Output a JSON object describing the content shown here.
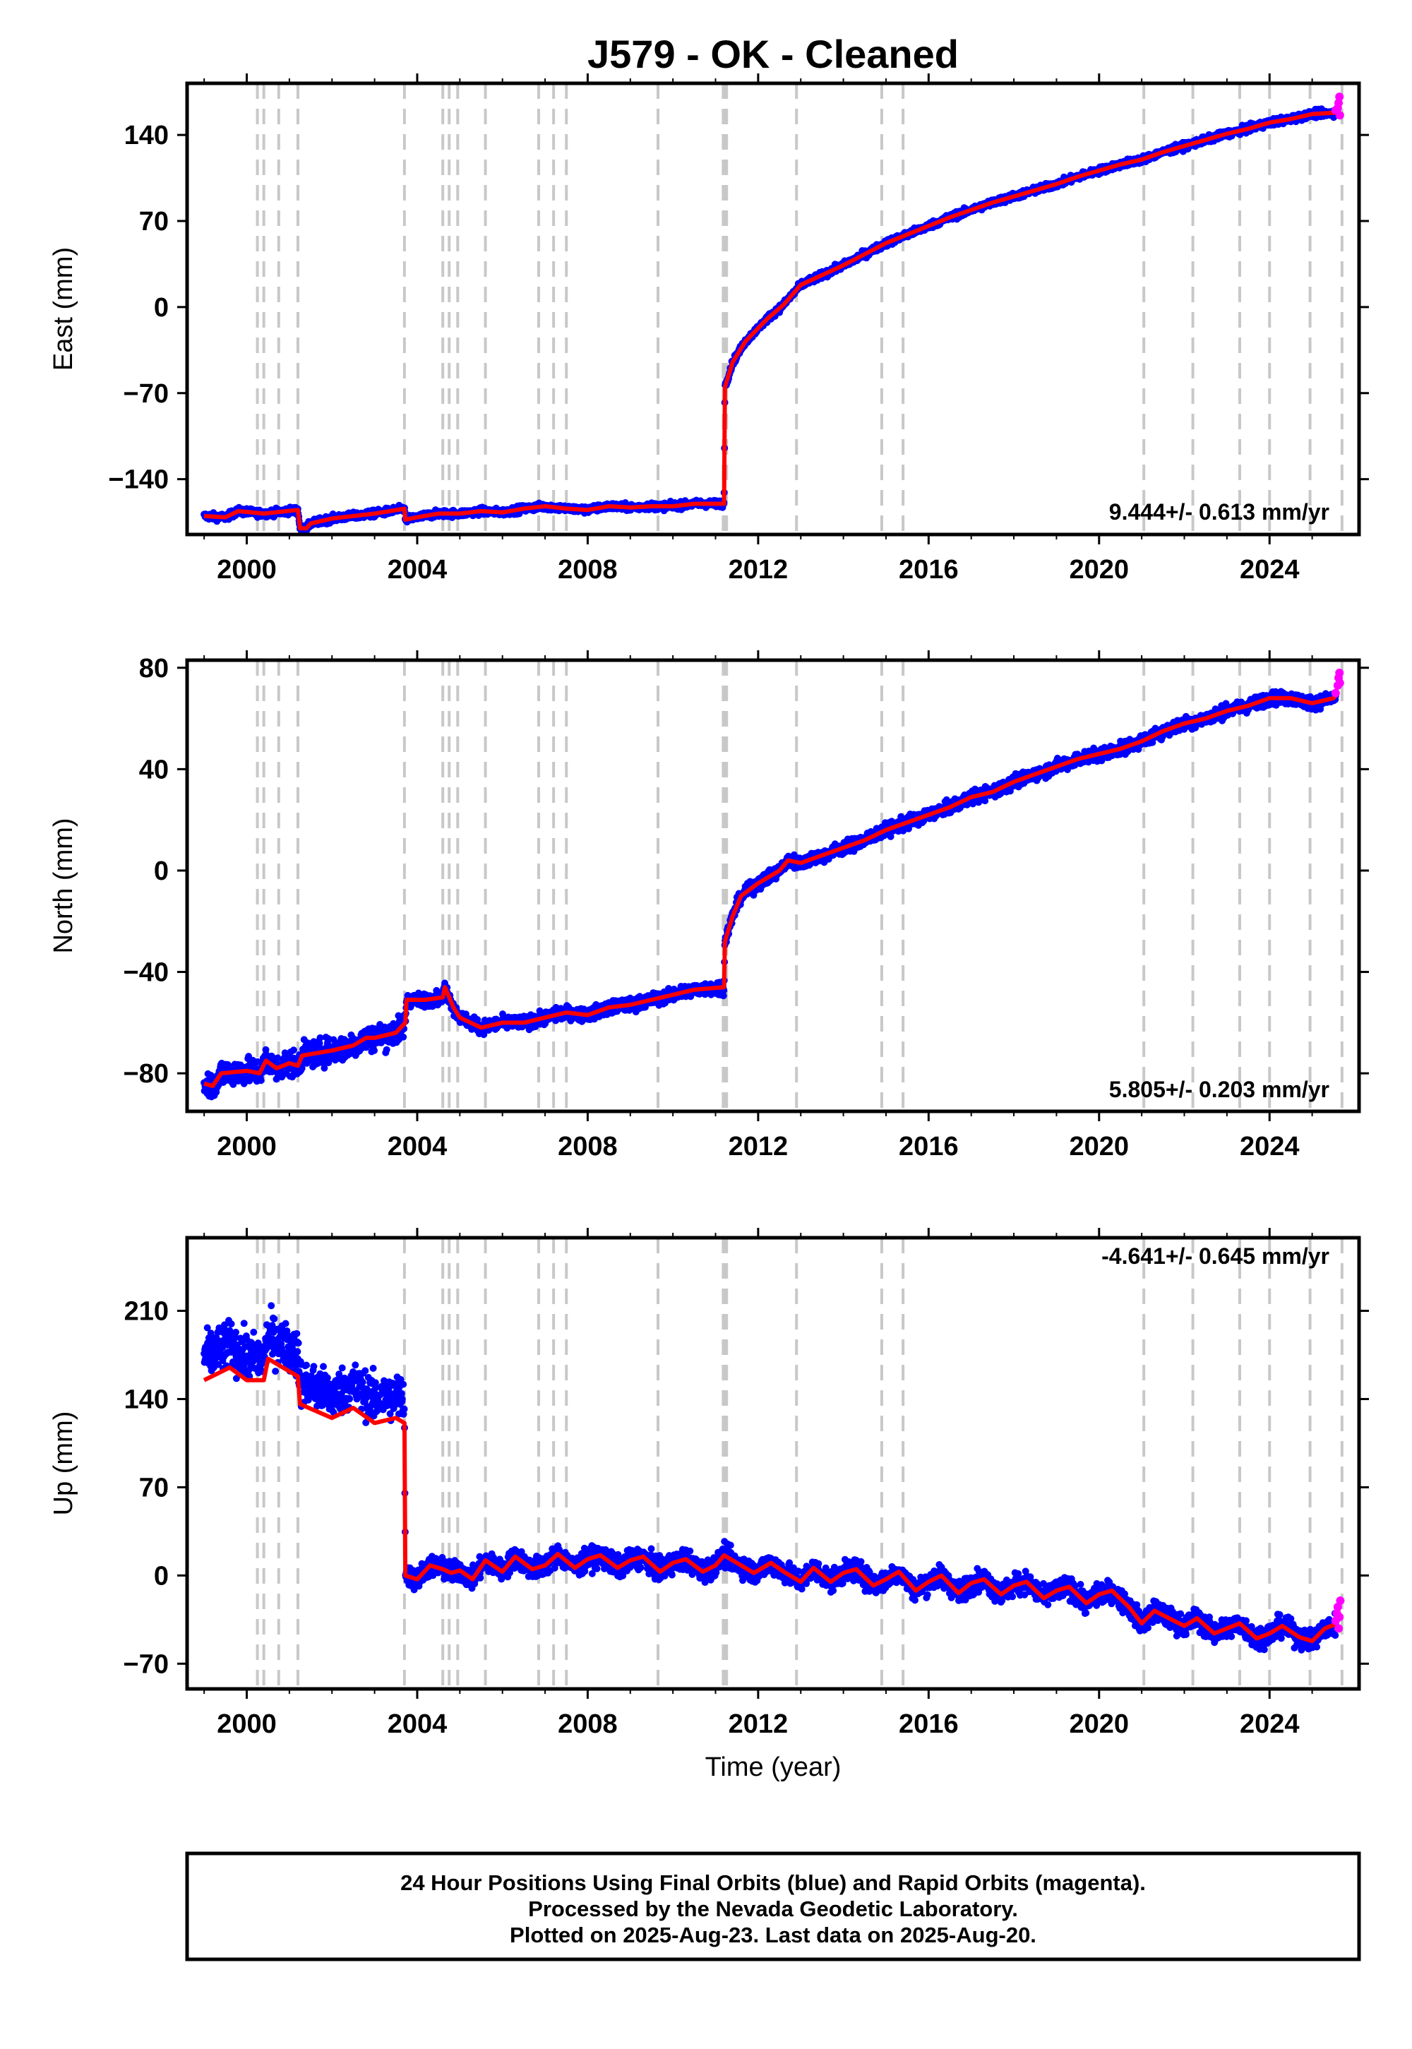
{
  "title": "J579  - OK - Cleaned",
  "x_axis_label": "Time (year)",
  "footer": {
    "line1": "24 Hour Positions Using Final Orbits (blue) and Rapid Orbits (magenta).",
    "line2": "Processed by the Nevada Geodetic Laboratory.",
    "line3": "Plotted on 2025-Aug-23. Last data on 2025-Aug-20."
  },
  "colors": {
    "final_orbits": "#0000ff",
    "rapid_orbits": "#ff00ff",
    "model": "#ff0000",
    "event_lines": "#c8c8c8"
  },
  "chart_data": [
    {
      "type": "scatter",
      "panel": "east",
      "ylabel": "East (mm)",
      "rate_text": "9.444+/- 0.613 mm/yr",
      "xlim": [
        1998.6,
        2026.1
      ],
      "ylim": [
        -185,
        182
      ],
      "xticks": [
        2000,
        2004,
        2008,
        2012,
        2016,
        2020,
        2024
      ],
      "yticks": [
        -140,
        -70,
        0,
        70,
        140
      ],
      "grid": false,
      "event_lines_x": [
        2000.25,
        2000.4,
        2000.75,
        2001.2,
        2003.7,
        2004.6,
        2004.75,
        2004.95,
        2005.6,
        2006.85,
        2007.2,
        2007.5,
        2009.65,
        2011.18,
        2011.22,
        2011.26,
        2012.9,
        2014.9,
        2015.4,
        2021.05,
        2022.2,
        2023.3,
        2024.0,
        2024.95,
        2025.7
      ],
      "model": [
        [
          1999.0,
          -170
        ],
        [
          1999.5,
          -171
        ],
        [
          1999.8,
          -166
        ],
        [
          2000.4,
          -168
        ],
        [
          2001.2,
          -165
        ],
        [
          2001.25,
          -180
        ],
        [
          2001.4,
          -180
        ],
        [
          2001.5,
          -176
        ],
        [
          2002.0,
          -172
        ],
        [
          2003.0,
          -168
        ],
        [
          2003.7,
          -164
        ],
        [
          2003.72,
          -173
        ],
        [
          2004.0,
          -171
        ],
        [
          2004.5,
          -168
        ],
        [
          2005.0,
          -168
        ],
        [
          2005.5,
          -166
        ],
        [
          2006.0,
          -167
        ],
        [
          2006.5,
          -164
        ],
        [
          2007.0,
          -162
        ],
        [
          2007.5,
          -164
        ],
        [
          2008.0,
          -165
        ],
        [
          2008.5,
          -162
        ],
        [
          2009.0,
          -163
        ],
        [
          2009.5,
          -162
        ],
        [
          2010.0,
          -162
        ],
        [
          2010.5,
          -160
        ],
        [
          2011.2,
          -160
        ],
        [
          2011.22,
          -65
        ],
        [
          2011.4,
          -45
        ],
        [
          2011.7,
          -28
        ],
        [
          2012.2,
          -10
        ],
        [
          2012.6,
          2
        ],
        [
          2012.8,
          10
        ],
        [
          2013.0,
          18
        ],
        [
          2013.5,
          26
        ],
        [
          2014.0,
          34
        ],
        [
          2014.5,
          43
        ],
        [
          2015.0,
          52
        ],
        [
          2015.5,
          59
        ],
        [
          2016.0,
          66
        ],
        [
          2016.5,
          73
        ],
        [
          2017.0,
          79
        ],
        [
          2017.5,
          85
        ],
        [
          2018.0,
          90
        ],
        [
          2018.5,
          95
        ],
        [
          2019.0,
          100
        ],
        [
          2019.5,
          106
        ],
        [
          2020.0,
          111
        ],
        [
          2020.5,
          116
        ],
        [
          2021.0,
          120
        ],
        [
          2021.5,
          126
        ],
        [
          2022.0,
          131
        ],
        [
          2022.5,
          136
        ],
        [
          2023.0,
          141
        ],
        [
          2023.5,
          145
        ],
        [
          2024.0,
          150
        ],
        [
          2024.5,
          153
        ],
        [
          2025.0,
          157
        ],
        [
          2025.5,
          158
        ],
        [
          2025.6,
          158
        ]
      ],
      "rapid": [
        [
          2025.55,
          160
        ],
        [
          2025.6,
          162
        ],
        [
          2025.62,
          166
        ],
        [
          2025.64,
          171
        ],
        [
          2025.65,
          156
        ]
      ]
    },
    {
      "type": "scatter",
      "panel": "north",
      "ylabel": "North (mm)",
      "rate_text": "5.805+/- 0.203 mm/yr",
      "xlim": [
        1998.6,
        2026.1
      ],
      "ylim": [
        -95,
        83
      ],
      "xticks": [
        2000,
        2004,
        2008,
        2012,
        2016,
        2020,
        2024
      ],
      "yticks": [
        -80,
        -40,
        0,
        40,
        80
      ],
      "grid": false,
      "event_lines_x": [
        2000.25,
        2000.4,
        2000.75,
        2001.2,
        2003.7,
        2004.6,
        2004.75,
        2004.95,
        2005.6,
        2006.85,
        2007.2,
        2007.5,
        2009.65,
        2011.18,
        2011.22,
        2011.26,
        2012.9,
        2014.9,
        2015.4,
        2021.05,
        2022.2,
        2023.3,
        2024.0,
        2024.95,
        2025.7
      ],
      "model": [
        [
          1999.0,
          -84
        ],
        [
          1999.2,
          -85
        ],
        [
          1999.4,
          -80
        ],
        [
          2000.0,
          -79
        ],
        [
          2000.3,
          -80
        ],
        [
          2000.45,
          -75
        ],
        [
          2000.7,
          -78
        ],
        [
          2001.0,
          -76
        ],
        [
          2001.2,
          -77
        ],
        [
          2001.3,
          -73
        ],
        [
          2002.0,
          -71
        ],
        [
          2002.5,
          -69
        ],
        [
          2002.8,
          -66
        ],
        [
          2003.0,
          -66
        ],
        [
          2003.5,
          -64
        ],
        [
          2003.72,
          -60
        ],
        [
          2003.75,
          -51
        ],
        [
          2004.2,
          -51
        ],
        [
          2004.6,
          -50
        ],
        [
          2004.65,
          -46
        ],
        [
          2004.85,
          -54
        ],
        [
          2005.0,
          -58
        ],
        [
          2005.5,
          -62
        ],
        [
          2006.0,
          -60
        ],
        [
          2006.5,
          -60
        ],
        [
          2007.0,
          -58
        ],
        [
          2007.5,
          -56
        ],
        [
          2008.0,
          -57
        ],
        [
          2008.5,
          -54
        ],
        [
          2009.0,
          -53
        ],
        [
          2009.5,
          -51
        ],
        [
          2010.0,
          -49
        ],
        [
          2010.5,
          -47
        ],
        [
          2011.2,
          -46
        ],
        [
          2011.22,
          -28
        ],
        [
          2011.4,
          -18
        ],
        [
          2011.6,
          -10
        ],
        [
          2012.0,
          -5
        ],
        [
          2012.5,
          0
        ],
        [
          2012.7,
          4
        ],
        [
          2013.0,
          3
        ],
        [
          2013.5,
          6
        ],
        [
          2014.0,
          9
        ],
        [
          2014.5,
          12
        ],
        [
          2015.0,
          16
        ],
        [
          2015.5,
          19
        ],
        [
          2016.0,
          22
        ],
        [
          2016.5,
          25
        ],
        [
          2017.0,
          29
        ],
        [
          2017.5,
          31
        ],
        [
          2018.0,
          35
        ],
        [
          2018.5,
          38
        ],
        [
          2019.0,
          41
        ],
        [
          2019.5,
          44
        ],
        [
          2020.0,
          46
        ],
        [
          2020.5,
          48
        ],
        [
          2021.0,
          51
        ],
        [
          2021.5,
          55
        ],
        [
          2022.0,
          58
        ],
        [
          2022.5,
          60
        ],
        [
          2023.0,
          63
        ],
        [
          2023.5,
          65
        ],
        [
          2024.0,
          68
        ],
        [
          2024.5,
          68
        ],
        [
          2025.0,
          66
        ],
        [
          2025.5,
          68
        ],
        [
          2025.6,
          70
        ]
      ],
      "rapid": [
        [
          2025.55,
          70
        ],
        [
          2025.6,
          73
        ],
        [
          2025.62,
          76
        ],
        [
          2025.64,
          78
        ],
        [
          2025.65,
          74
        ]
      ]
    },
    {
      "type": "scatter",
      "panel": "up",
      "ylabel": "Up (mm)",
      "rate_text": "-4.641+/- 0.645 mm/yr",
      "xlim": [
        1998.6,
        2026.1
      ],
      "ylim": [
        -90,
        268
      ],
      "xticks": [
        2000,
        2004,
        2008,
        2012,
        2016,
        2020,
        2024
      ],
      "yticks": [
        -70,
        0,
        70,
        140,
        210
      ],
      "grid": false,
      "event_lines_x": [
        2000.25,
        2000.4,
        2000.75,
        2001.2,
        2003.7,
        2004.6,
        2004.75,
        2004.95,
        2005.6,
        2006.85,
        2007.2,
        2007.5,
        2009.65,
        2011.18,
        2011.22,
        2011.26,
        2012.9,
        2014.9,
        2015.4,
        2021.05,
        2022.2,
        2023.3,
        2024.0,
        2024.95,
        2025.7
      ],
      "model": [
        [
          1999.0,
          155
        ],
        [
          1999.3,
          160
        ],
        [
          1999.6,
          165
        ],
        [
          2000.0,
          155
        ],
        [
          2000.4,
          155
        ],
        [
          2000.5,
          172
        ],
        [
          2001.2,
          158
        ],
        [
          2001.25,
          136
        ],
        [
          2002.0,
          125
        ],
        [
          2002.5,
          133
        ],
        [
          2003.0,
          121
        ],
        [
          2003.5,
          125
        ],
        [
          2003.7,
          121
        ],
        [
          2003.72,
          0
        ],
        [
          2004.0,
          -3
        ],
        [
          2004.3,
          8
        ],
        [
          2004.6,
          5
        ],
        [
          2004.8,
          2
        ],
        [
          2005.0,
          4
        ],
        [
          2005.3,
          -3
        ],
        [
          2005.6,
          12
        ],
        [
          2006.0,
          3
        ],
        [
          2006.3,
          15
        ],
        [
          2006.7,
          5
        ],
        [
          2007.0,
          8
        ],
        [
          2007.3,
          17
        ],
        [
          2007.7,
          6
        ],
        [
          2008.0,
          13
        ],
        [
          2008.3,
          16
        ],
        [
          2008.7,
          6
        ],
        [
          2009.0,
          12
        ],
        [
          2009.3,
          15
        ],
        [
          2009.7,
          3
        ],
        [
          2010.0,
          10
        ],
        [
          2010.3,
          13
        ],
        [
          2010.7,
          3
        ],
        [
          2011.0,
          8
        ],
        [
          2011.2,
          16
        ],
        [
          2011.6,
          8
        ],
        [
          2011.9,
          2
        ],
        [
          2012.3,
          10
        ],
        [
          2012.6,
          3
        ],
        [
          2013.0,
          -5
        ],
        [
          2013.3,
          6
        ],
        [
          2013.7,
          -5
        ],
        [
          2014.0,
          2
        ],
        [
          2014.3,
          5
        ],
        [
          2014.7,
          -8
        ],
        [
          2015.0,
          -3
        ],
        [
          2015.3,
          3
        ],
        [
          2015.7,
          -12
        ],
        [
          2016.0,
          -5
        ],
        [
          2016.3,
          0
        ],
        [
          2016.7,
          -14
        ],
        [
          2017.0,
          -6
        ],
        [
          2017.3,
          -3
        ],
        [
          2017.7,
          -15
        ],
        [
          2018.0,
          -8
        ],
        [
          2018.3,
          -5
        ],
        [
          2018.7,
          -18
        ],
        [
          2019.0,
          -12
        ],
        [
          2019.3,
          -9
        ],
        [
          2019.7,
          -22
        ],
        [
          2020.0,
          -15
        ],
        [
          2020.3,
          -12
        ],
        [
          2020.7,
          -25
        ],
        [
          2021.0,
          -38
        ],
        [
          2021.3,
          -28
        ],
        [
          2021.7,
          -35
        ],
        [
          2022.0,
          -40
        ],
        [
          2022.3,
          -34
        ],
        [
          2022.7,
          -46
        ],
        [
          2023.0,
          -42
        ],
        [
          2023.3,
          -38
        ],
        [
          2023.7,
          -50
        ],
        [
          2024.0,
          -46
        ],
        [
          2024.3,
          -40
        ],
        [
          2024.7,
          -49
        ],
        [
          2025.0,
          -52
        ],
        [
          2025.3,
          -42
        ],
        [
          2025.6,
          -38
        ]
      ],
      "rapid": [
        [
          2025.55,
          -36
        ],
        [
          2025.58,
          -30
        ],
        [
          2025.6,
          -25
        ],
        [
          2025.62,
          -42
        ],
        [
          2025.64,
          -33
        ],
        [
          2025.66,
          -20
        ]
      ]
    }
  ]
}
